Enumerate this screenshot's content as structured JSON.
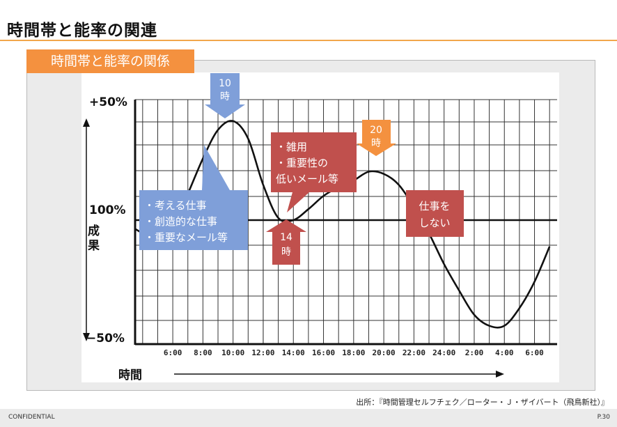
{
  "page": {
    "title": "時間帯と能率の関連",
    "section_label": "時間帯と能率の関係",
    "source": "出所：『時間管理セルフチェク／ローター・Ｊ・ザイバート（飛鳥新社）』",
    "confidential": "CONFIDENTIAL",
    "page_number": "P.30"
  },
  "chart_data": {
    "type": "line",
    "title": "時間帯と能率の関係",
    "xlabel": "時間",
    "ylabel": "成果",
    "y_tick_labels": [
      "+50%",
      "100%",
      "−50%"
    ],
    "ylim": [
      -50,
      50
    ],
    "x_tick_labels": [
      "6:00",
      "8:00",
      "10:00",
      "12:00",
      "14:00",
      "16:00",
      "18:00",
      "20:00",
      "22:00",
      "24:00",
      "2:00",
      "4:00",
      "6:00"
    ],
    "x_hours": [
      6,
      8,
      10,
      12,
      14,
      16,
      18,
      20,
      22,
      24,
      26,
      28,
      30
    ],
    "series": [
      {
        "name": "成果",
        "x": [
          3.5,
          4,
          5,
          6,
          7,
          8,
          9,
          10,
          11,
          12,
          13,
          14,
          15,
          16,
          17,
          18,
          19,
          20,
          21,
          22,
          23,
          24,
          25,
          26,
          27,
          28,
          29,
          30,
          31
        ],
        "values": [
          -4,
          -6,
          -10,
          -3,
          12,
          28,
          41,
          45,
          37,
          16,
          1,
          0,
          5,
          11,
          15,
          18,
          22,
          21,
          16,
          6,
          -6,
          -20,
          -32,
          -43,
          -48,
          -48,
          -40,
          -28,
          -12
        ]
      }
    ],
    "callouts": [
      {
        "text": [
          "10",
          "時"
        ],
        "hour": 10,
        "color": "#7f9fd9",
        "direction": "down"
      },
      {
        "text": [
          "20",
          "時"
        ],
        "hour": 20,
        "color": "#f4913f",
        "direction": "down"
      },
      {
        "text": [
          "14",
          "時"
        ],
        "hour": 14,
        "color": "#c0504d",
        "direction": "up"
      },
      {
        "text": [
          "・考える仕事",
          "・創造的な仕事",
          "・重要なメール等"
        ],
        "color": "#7f9fd9"
      },
      {
        "text": [
          "・雑用",
          "・重要性の",
          "低いメール等"
        ],
        "color": "#c0504d"
      },
      {
        "text": [
          "仕事を",
          "しない"
        ],
        "color": "#c0504d"
      }
    ]
  }
}
